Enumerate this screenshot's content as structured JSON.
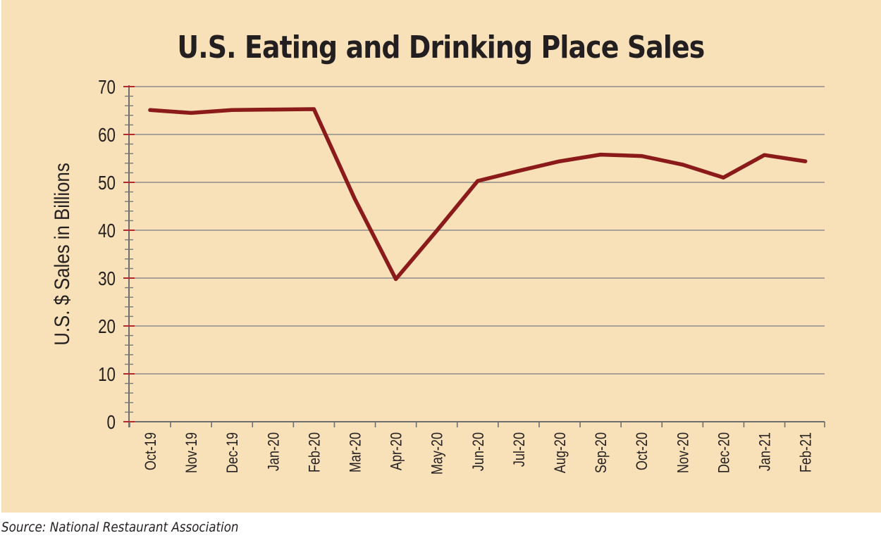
{
  "chart_data": {
    "type": "line",
    "title": "U.S. Eating and Drinking Place Sales",
    "ylabel": "U.S. $ Sales in Billions",
    "xlabel": "",
    "ylim": [
      0,
      70
    ],
    "yticks": [
      0,
      10,
      20,
      30,
      40,
      50,
      60,
      70
    ],
    "grid": true,
    "categories": [
      "Oct-19",
      "Nov-19",
      "Dec-19",
      "Jan-20",
      "Feb-20",
      "Mar-20",
      "Apr-20",
      "May-20",
      "Jun-20",
      "Jul-20",
      "Aug-20",
      "Sep-20",
      "Oct-20",
      "Nov-20",
      "Dec-20",
      "Jan-21",
      "Feb-21"
    ],
    "series": [
      {
        "values": [
          65.1,
          64.5,
          65.1,
          65.2,
          65.3,
          46.5,
          29.8,
          39.9,
          50.3,
          52.4,
          54.4,
          55.8,
          55.5,
          53.7,
          51.0,
          55.7,
          54.4
        ],
        "color": "#8b1a1a"
      }
    ]
  },
  "source": "Source: National Restaurant Association"
}
